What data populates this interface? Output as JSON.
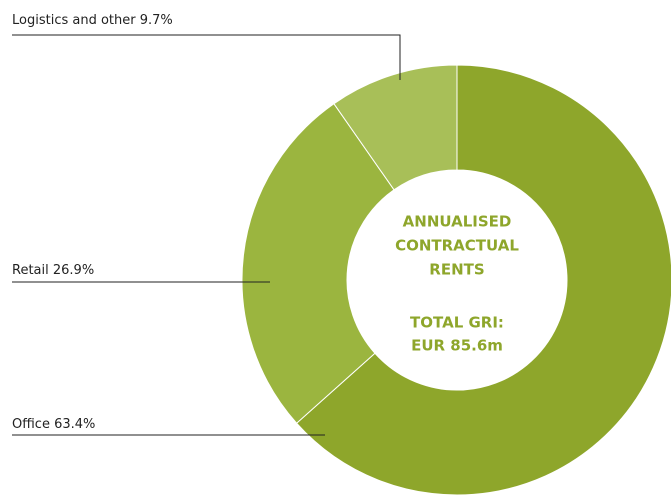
{
  "chart_data": {
    "type": "donut",
    "title": [
      "ANNUALISED",
      "CONTRACTUAL",
      "RENTS"
    ],
    "subtitle": [
      "TOTAL GRI:",
      "EUR 85.6m"
    ],
    "categories": [
      "Office",
      "Retail",
      "Logistics and other"
    ],
    "values": [
      63.4,
      26.9,
      9.7
    ],
    "value_labels": [
      "63.4%",
      "26.9%",
      "9.7%"
    ],
    "colors": [
      "#8ea62b",
      "#9bb53f",
      "#a8bf58"
    ]
  }
}
